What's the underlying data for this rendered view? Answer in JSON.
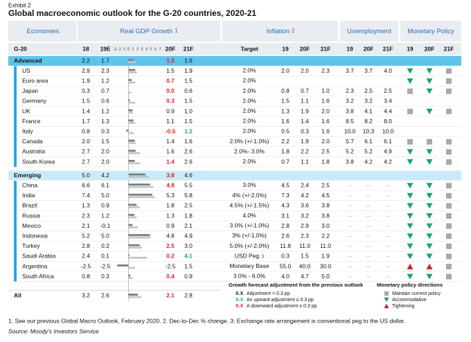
{
  "exhibit": "Exhibit 2",
  "title": "Global macroeconomic outlook for the G-20 countries, 2020-21",
  "groups": [
    {
      "label": "Economies"
    },
    {
      "label": "Real GDP Growth",
      "note": "1"
    },
    {
      "label": "Inflation",
      "note": "2"
    },
    {
      "label": "Unemployment"
    },
    {
      "label": "Monetary Policy"
    }
  ],
  "columns": [
    "G-20",
    "18",
    "19E",
    "20F",
    "21F",
    "Target",
    "19",
    "20F",
    "21F",
    "19",
    "20F",
    "21F",
    "19",
    "20F",
    "21F"
  ],
  "gdp_axis": [
    -3,
    -2,
    -1,
    0,
    1,
    2,
    3,
    4,
    5,
    6,
    7
  ],
  "rows": [
    {
      "name": "Advanced",
      "kind": "group",
      "gdp": [
        "2.2",
        "1.7",
        "1.0",
        "1.6"
      ],
      "adj20": "down"
    },
    {
      "name": "US",
      "gdp": [
        "2.9",
        "2.3",
        "1.5",
        "1.9"
      ],
      "target": "2.0%",
      "inflation": [
        "2.0",
        "2.0",
        "2.3"
      ],
      "unemployment": [
        "3.7",
        "3.7",
        "4.0"
      ],
      "policy": [
        "accommodative",
        "accommodative",
        "maintain"
      ]
    },
    {
      "name": "Euro area",
      "gdp": [
        "1.9",
        "1.2",
        "0.7",
        "1.5"
      ],
      "adj20": "down",
      "target": "2.0%",
      "policy": [
        "accommodative",
        "accommodative",
        "maintain"
      ]
    },
    {
      "name": "Japan",
      "gdp": [
        "0.3",
        "0.7",
        "0.0",
        "0.6"
      ],
      "adj20": "down",
      "target": "2.0%",
      "inflation": [
        "0.8",
        "0.7",
        "1.0"
      ],
      "unemployment": [
        "2.3",
        "2.5",
        "2.5"
      ],
      "policy": [
        "maintain",
        "accommodative",
        "maintain"
      ]
    },
    {
      "name": "Germany",
      "gdp": [
        "1.5",
        "0.6",
        "0.3",
        "1.5"
      ],
      "adj20": "down",
      "target": "2.0%",
      "inflation": [
        "1.5",
        "1.1",
        "1.6"
      ],
      "unemployment": [
        "3.2",
        "3.2",
        "3.4"
      ]
    },
    {
      "name": "UK",
      "gdp": [
        "1.4",
        "1.2",
        "0.9",
        "1.0"
      ],
      "target": "2.0%",
      "inflation": [
        "1.3",
        "1.9",
        "2.0"
      ],
      "unemployment": [
        "3.8",
        "4.1",
        "4.4"
      ],
      "policy": [
        "maintain",
        "accommodative",
        "maintain"
      ]
    },
    {
      "name": "France",
      "gdp": [
        "1.7",
        "1.3",
        "1.1",
        "1.5"
      ],
      "target": "2.0%",
      "inflation": [
        "1.6",
        "1.4",
        "1.6"
      ],
      "unemployment": [
        "8.5",
        "8.2",
        "8.0"
      ]
    },
    {
      "name": "Italy",
      "gdp": [
        "0.8",
        "0.3",
        "-0.5",
        "1.2"
      ],
      "adj20": "down",
      "adj21": "up",
      "target": "2.0%",
      "inflation": [
        "0.5",
        "0.3",
        "1.6"
      ],
      "unemployment": [
        "10.0",
        "10.3",
        "10.0"
      ]
    },
    {
      "name": "Canada",
      "gdp": [
        "2.0",
        "1.5",
        "1.4",
        "1.6"
      ],
      "target": "2.0% (+/-1.0%)",
      "inflation": [
        "2.2",
        "1.9",
        "2.0"
      ],
      "unemployment": [
        "5.7",
        "6.1",
        "6.1"
      ],
      "policy": [
        "maintain",
        "maintain",
        "maintain"
      ]
    },
    {
      "name": "Australia",
      "gdp": [
        "2.7",
        "2.0",
        "1.6",
        "2.6"
      ],
      "target": "2.0%- 3.0%",
      "inflation": [
        "1.8",
        "2.2",
        "2.5"
      ],
      "unemployment": [
        "5.2",
        "5.2",
        "4.9"
      ],
      "policy": [
        "accommodative",
        "accommodative",
        "maintain"
      ]
    },
    {
      "name": "South Korea",
      "gdp": [
        "2.7",
        "2.0",
        "1.4",
        "2.6"
      ],
      "adj20": "down",
      "target": "2.0%",
      "inflation": [
        "0.7",
        "1.1",
        "1.8"
      ],
      "unemployment": [
        "3.8",
        "4.2",
        "4.2"
      ],
      "policy": [
        "accommodative",
        "accommodative",
        "maintain"
      ]
    },
    {
      "name": "Emerging",
      "kind": "group",
      "gdp": [
        "5.0",
        "4.2",
        "3.8",
        "4.6"
      ],
      "adj20": "down"
    },
    {
      "name": "China",
      "gdp": [
        "6.6",
        "6.1",
        "4.8",
        "5.5"
      ],
      "adj20": "down",
      "target": "3.0%",
      "inflation": [
        "4.5",
        "2.4",
        "2.5"
      ],
      "unemployment": [
        "--",
        "--",
        "--"
      ],
      "policy": [
        "accommodative",
        "accommodative",
        "maintain"
      ]
    },
    {
      "name": "India",
      "gdp": [
        "7.4",
        "5.0",
        "5.3",
        "5.8"
      ],
      "target": "4% (+/-2.0%)",
      "inflation": [
        "7.3",
        "4.2",
        "4.5"
      ],
      "unemployment": [
        "--",
        "--",
        "--"
      ],
      "policy": [
        "accommodative",
        "accommodative",
        "maintain"
      ]
    },
    {
      "name": "Brazil",
      "gdp": [
        "1.3",
        "0.9",
        "1.8",
        "2.5"
      ],
      "target": "4.5% (+/-1.5%)",
      "inflation": [
        "4.3",
        "3.6",
        "3.8"
      ],
      "unemployment": [
        "--",
        "--",
        "--"
      ],
      "policy": [
        "accommodative",
        "accommodative",
        "maintain"
      ]
    },
    {
      "name": "Russia",
      "gdp": [
        "2.3",
        "1.2",
        "1.3",
        "1.8"
      ],
      "target": "4.0%",
      "inflation": [
        "3.1",
        "3.2",
        "3.8"
      ],
      "unemployment": [
        "--",
        "--",
        "--"
      ],
      "policy": [
        "accommodative",
        "accommodative",
        "maintain"
      ]
    },
    {
      "name": "Mexico",
      "gdp": [
        "2.1",
        "-0.1",
        "0.9",
        "2.1"
      ],
      "target": "3.0% (+/-1.0%)",
      "inflation": [
        "2.8",
        "2.9",
        "3.0"
      ],
      "unemployment": [
        "--",
        "--",
        "--"
      ],
      "policy": [
        "accommodative",
        "accommodative",
        "maintain"
      ]
    },
    {
      "name": "Indonesia",
      "gdp": [
        "5.2",
        "5.0",
        "4.8",
        "4.9"
      ],
      "target": "3% (+/-1.0%)",
      "inflation": [
        "2.6",
        "2.3",
        "2.2"
      ],
      "unemployment": [
        "--",
        "--",
        "--"
      ],
      "policy": [
        "accommodative",
        "accommodative",
        "maintain"
      ]
    },
    {
      "name": "Turkey",
      "gdp": [
        "2.8",
        "0.2",
        "2.5",
        "3.0"
      ],
      "adj20": "down",
      "target": "5.0% (+/-2.0%)",
      "inflation": [
        "11.8",
        "11.0",
        "11.0"
      ],
      "unemployment": [
        "--",
        "--",
        "--"
      ],
      "policy": [
        "accommodative",
        "accommodative",
        "maintain"
      ]
    },
    {
      "name": "Saudi Arabia",
      "gdp": [
        "2.4",
        "0.1",
        "0.2",
        "4.1"
      ],
      "adj20": "down",
      "adj21": "up",
      "target": "USD Peg",
      "target_note": "3",
      "inflation": [
        "0.3",
        "1.5",
        "1.9"
      ],
      "unemployment": [
        "--",
        "--",
        "--"
      ],
      "policy": [
        "accommodative",
        "accommodative",
        "maintain"
      ]
    },
    {
      "name": "Argentina",
      "gdp": [
        "-2.5",
        "-2.5",
        "-2.5",
        "1.5"
      ],
      "target": "Monetary Base",
      "inflation": [
        "55.0",
        "40.0",
        "30.0"
      ],
      "unemployment": [
        "--",
        "--",
        "--"
      ],
      "policy": [
        "tightening",
        "tightening",
        "maintain"
      ]
    },
    {
      "name": "South Africa",
      "gdp": [
        "0.8",
        "0.3",
        "0.4",
        "0.9"
      ],
      "adj20": "down",
      "target": "3.0% - 6.0%",
      "inflation": [
        "4.0",
        "4.7",
        "5.0"
      ],
      "unemployment": [
        "--",
        "--",
        "--"
      ],
      "policy": [
        "accommodative",
        "accommodative",
        "maintain"
      ]
    },
    {
      "name": "All",
      "kind": "group",
      "gdp": [
        "3.2",
        "2.6",
        "2.1",
        "2.8"
      ],
      "adj20": "down"
    }
  ],
  "legend_adjustment": {
    "title": "Growth forecast adjustment from the previous outlook",
    "items": [
      {
        "sample": "X.X",
        "text": "Adjustment < 0.3 pp",
        "adj": "none"
      },
      {
        "sample": "X.X",
        "text": "An upward adjustment ≥ 0.3 pp",
        "adj": "up"
      },
      {
        "sample": "X.X",
        "text": "A downward adjustment ≥ 0.3 pp",
        "adj": "down"
      }
    ]
  },
  "legend_policy": {
    "title": "Monetary policy directions",
    "items": [
      {
        "text": "Maintain current policy",
        "policy": "maintain"
      },
      {
        "text": "Accommodative",
        "policy": "accommodative"
      },
      {
        "text": "Tightening",
        "policy": "tightening"
      }
    ]
  },
  "footnote": "1. See our previous Global Macro Outlook, February 2020. 2. Dec-to-Dec % change. 3. Exchange rate arrangement is conventional peg to the US dollar.",
  "source": "Source: Moody's Investors Service"
}
